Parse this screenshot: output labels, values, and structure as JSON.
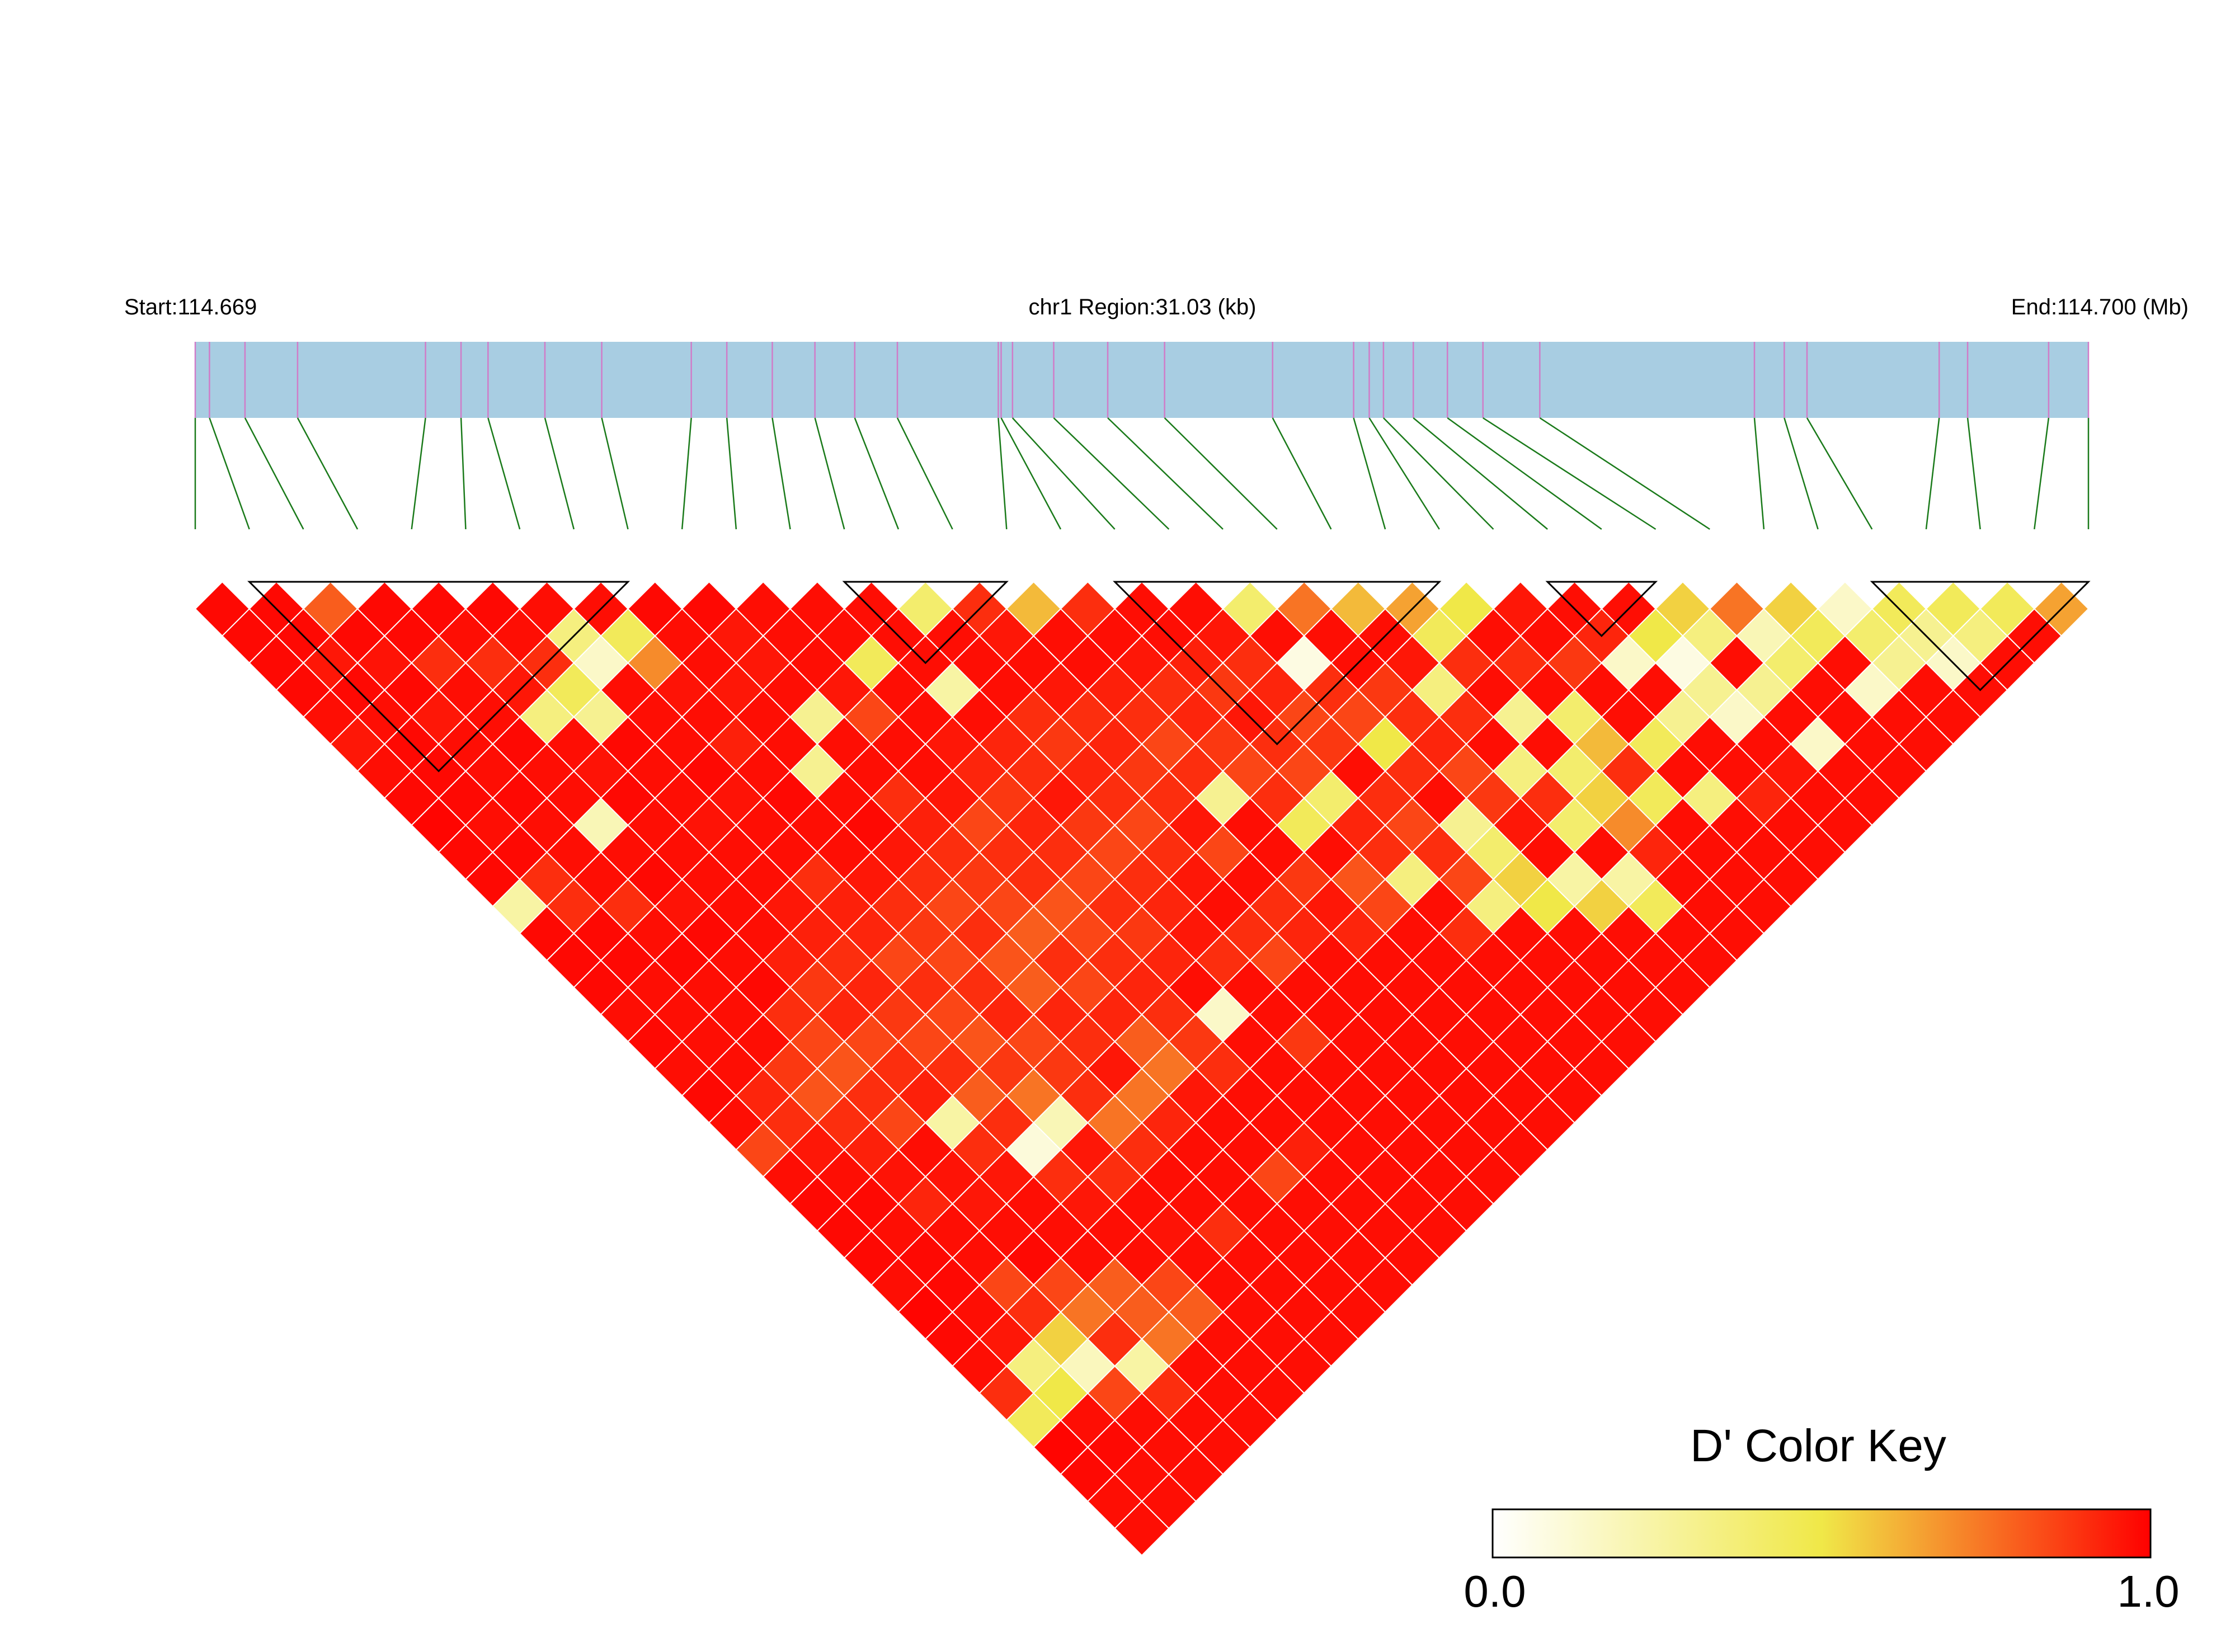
{
  "chart_data": {
    "type": "heatmap",
    "subtype": "linkage-disequilibrium-triangle",
    "header": {
      "start_label": "Start:114.669",
      "region_label": "chr1 Region:31.03 (kb)",
      "end_label": "End:114.700 (Mb)"
    },
    "region": {
      "chromosome": "chr1",
      "start_mb": 114.669,
      "end_mb": 114.7,
      "length_kb": 31.03
    },
    "metric": "D'",
    "snp_count": 36,
    "snp_positions_mb": [
      114.669,
      114.6691,
      114.66935,
      114.66972,
      114.67062,
      114.67087,
      114.67106,
      114.67146,
      114.67186,
      114.67249,
      114.67274,
      114.67306,
      114.67336,
      114.67364,
      114.67394,
      114.67465,
      114.67467,
      114.67475,
      114.67504,
      114.67542,
      114.67582,
      114.67658,
      114.67715,
      114.67726,
      114.67736,
      114.67757,
      114.67781,
      114.67806,
      114.67846,
      114.67997,
      114.68018,
      114.68034,
      114.68127,
      114.68147,
      114.68204,
      114.68232
    ],
    "ld_blocks": [
      {
        "first_snp": 2,
        "last_snp": 9
      },
      {
        "first_snp": 13,
        "last_snp": 16
      },
      {
        "first_snp": 18,
        "last_snp": 24
      },
      {
        "first_snp": 26,
        "last_snp": 28
      },
      {
        "first_snp": 32,
        "last_snp": 36
      }
    ],
    "color_key": {
      "title": "D' Color Key",
      "min_label": "0.0",
      "max_label": "1.0",
      "min": 0.0,
      "max": 1.0,
      "colors": {
        "low": "#ffffff",
        "mid": "#f0e848",
        "high": "#ff0000"
      }
    },
    "colors": {
      "gene_bar": "#a8cde2",
      "connector": "#1a7a1a",
      "exon_tick": "#d07cc8",
      "block_outline": "#000000",
      "cell_border": "#ffffff"
    },
    "ld_rows": [
      [
        0.98,
        0.98,
        0.98,
        0.98,
        0.97,
        0.95,
        0.97,
        0.98,
        0.99,
        0.98,
        0.98,
        0.25,
        0.98,
        0.98,
        0.98,
        0.97,
        0.98,
        0.97,
        0.98,
        0.97,
        0.85,
        0.97,
        0.98,
        0.98,
        0.98,
        0.97,
        0.99,
        0.98,
        0.97,
        0.9,
        0.45,
        0.99,
        0.98,
        0.97,
        0.97
      ],
      [
        0.98,
        0.98,
        0.95,
        0.98,
        0.97,
        0.98,
        0.98,
        0.98,
        0.97,
        0.98,
        0.9,
        0.9,
        0.98,
        0.98,
        0.97,
        0.97,
        0.97,
        0.97,
        0.92,
        0.9,
        0.95,
        0.97,
        0.98,
        0.97,
        0.98,
        0.98,
        0.97,
        0.95,
        0.35,
        0.5,
        0.97,
        0.98,
        0.97,
        0.97
      ],
      [
        0.8,
        0.98,
        0.96,
        0.98,
        0.95,
        0.97,
        0.97,
        0.98,
        0.97,
        0.97,
        0.97,
        0.9,
        0.97,
        0.98,
        0.97,
        0.97,
        0.97,
        0.88,
        0.82,
        0.9,
        0.93,
        0.96,
        0.92,
        0.97,
        0.97,
        0.85,
        0.9,
        0.55,
        0.18,
        0.85,
        0.97,
        0.97,
        0.97
      ],
      [
        0.98,
        0.98,
        0.9,
        0.97,
        0.97,
        0.98,
        0.97,
        0.97,
        0.2,
        0.97,
        0.98,
        0.96,
        0.98,
        0.97,
        0.98,
        0.9,
        0.85,
        0.82,
        0.9,
        0.85,
        0.97,
        0.96,
        0.95,
        0.97,
        0.98,
        0.85,
        0.75,
        0.9,
        0.25,
        0.9,
        0.97,
        0.97
      ],
      [
        0.98,
        0.97,
        0.9,
        0.95,
        0.35,
        0.97,
        0.96,
        0.98,
        0.97,
        0.97,
        0.97,
        0.97,
        0.97,
        0.93,
        0.88,
        0.92,
        0.85,
        0.9,
        0.93,
        0.25,
        0.9,
        0.95,
        0.97,
        0.97,
        0.97,
        0.8,
        0.8,
        0.75,
        0.97,
        0.97,
        0.97
      ],
      [
        0.98,
        0.97,
        0.9,
        0.45,
        0.3,
        0.98,
        0.97,
        0.97,
        0.96,
        0.97,
        0.97,
        0.95,
        0.93,
        0.9,
        0.92,
        0.88,
        0.85,
        0.9,
        0.8,
        0.9,
        0.1,
        0.9,
        0.95,
        0.97,
        0.97,
        0.85,
        0.8,
        0.97,
        0.97,
        0.97
      ],
      [
        0.97,
        0.35,
        0.15,
        0.97,
        0.97,
        0.97,
        0.98,
        0.96,
        0.97,
        0.97,
        0.9,
        0.93,
        0.92,
        0.85,
        0.9,
        0.85,
        0.82,
        0.88,
        0.75,
        0.2,
        0.95,
        0.9,
        0.97,
        0.96,
        0.97,
        0.97,
        0.97,
        0.97,
        0.97
      ],
      [
        0.97,
        0.45,
        0.7,
        0.96,
        0.97,
        0.93,
        0.97,
        0.98,
        0.97,
        0.97,
        0.95,
        0.9,
        0.88,
        0.85,
        0.9,
        0.92,
        0.85,
        0.88,
        0.9,
        0.75,
        0.9,
        0.97,
        0.97,
        0.9,
        0.97,
        0.97,
        0.97,
        0.97
      ],
      [
        0.98,
        0.97,
        0.97,
        0.95,
        0.97,
        0.97,
        0.3,
        0.97,
        0.98,
        0.95,
        0.9,
        0.85,
        0.9,
        0.82,
        0.8,
        0.92,
        0.9,
        0.95,
        0.75,
        0.92,
        0.97,
        0.97,
        0.97,
        0.97,
        0.97,
        0.97,
        0.97
      ],
      [
        0.98,
        0.95,
        0.95,
        0.97,
        0.3,
        0.97,
        0.97,
        0.9,
        0.93,
        0.9,
        0.88,
        0.85,
        0.8,
        0.9,
        0.85,
        0.92,
        0.8,
        0.75,
        0.95,
        0.97,
        0.97,
        0.85,
        0.97,
        0.97,
        0.97,
        0.97
      ],
      [
        0.97,
        0.97,
        0.97,
        0.95,
        0.85,
        0.97,
        0.97,
        0.95,
        0.85,
        0.9,
        0.9,
        0.82,
        0.85,
        0.9,
        0.92,
        0.9,
        0.88,
        0.9,
        0.97,
        0.97,
        0.93,
        0.97,
        0.97,
        0.97,
        0.97
      ],
      [
        0.97,
        0.97,
        0.45,
        0.97,
        0.97,
        0.95,
        0.92,
        0.88,
        0.92,
        0.9,
        0.85,
        0.9,
        0.88,
        0.92,
        0.97,
        0.15,
        0.97,
        0.97,
        0.97,
        0.97,
        0.97,
        0.97,
        0.97,
        0.97
      ],
      [
        0.97,
        0.97,
        0.97,
        0.25,
        0.97,
        0.92,
        0.9,
        0.95,
        0.88,
        0.85,
        0.9,
        0.92,
        0.95,
        0.9,
        0.97,
        0.97,
        0.88,
        0.97,
        0.97,
        0.97,
        0.97,
        0.97,
        0.97
      ],
      [
        0.4,
        0.97,
        0.97,
        0.97,
        0.9,
        0.88,
        0.92,
        0.9,
        0.85,
        0.9,
        0.95,
        0.97,
        0.9,
        0.85,
        0.97,
        0.97,
        0.97,
        0.97,
        0.97,
        0.97,
        0.97,
        0.97
      ],
      [
        0.9,
        0.95,
        0.97,
        0.95,
        0.9,
        0.92,
        0.88,
        0.9,
        0.95,
        0.85,
        0.97,
        0.9,
        0.92,
        0.97,
        0.97,
        0.97,
        0.97,
        0.97,
        0.97,
        0.97,
        0.97
      ],
      [
        0.6,
        0.97,
        0.97,
        0.93,
        0.9,
        0.85,
        0.9,
        0.3,
        0.97,
        0.97,
        0.88,
        0.95,
        0.92,
        0.97,
        0.97,
        0.97,
        0.97,
        0.97,
        0.97,
        0.97
      ],
      [
        0.9,
        0.97,
        0.95,
        0.9,
        0.92,
        0.88,
        0.85,
        0.9,
        0.45,
        0.97,
        0.82,
        0.85,
        0.97,
        0.97,
        0.97,
        0.97,
        0.97,
        0.97,
        0.97
      ],
      [
        0.97,
        0.97,
        0.93,
        0.88,
        0.95,
        0.9,
        0.85,
        0.4,
        0.92,
        0.9,
        0.35,
        0.97,
        0.9,
        0.97,
        0.97,
        0.97,
        0.97,
        0.97
      ],
      [
        0.97,
        0.95,
        0.9,
        0.92,
        0.85,
        0.88,
        0.97,
        0.9,
        0.85,
        0.9,
        0.85,
        0.35,
        0.97,
        0.97,
        0.97,
        0.97,
        0.97
      ],
      [
        0.4,
        0.97,
        0.08,
        0.9,
        0.85,
        0.5,
        0.9,
        0.97,
        0.3,
        0.4,
        0.55,
        0.5,
        0.97,
        0.97,
        0.97,
        0.97
      ],
      [
        0.75,
        0.97,
        0.97,
        0.88,
        0.9,
        0.92,
        0.85,
        0.88,
        0.95,
        0.97,
        0.25,
        0.55,
        0.97,
        0.97,
        0.97
      ],
      [
        0.6,
        0.97,
        0.95,
        0.35,
        0.9,
        0.97,
        0.35,
        0.9,
        0.4,
        0.97,
        0.25,
        0.45,
        0.97,
        0.97
      ],
      [
        0.65,
        0.45,
        0.9,
        0.97,
        0.3,
        0.97,
        0.4,
        0.55,
        0.7,
        0.92,
        0.97,
        0.97,
        0.97
      ],
      [
        0.5,
        0.97,
        0.9,
        0.97,
        0.4,
        0.6,
        0.9,
        0.45,
        0.97,
        0.97,
        0.97,
        0.97
      ],
      [
        0.95,
        0.97,
        0.88,
        0.97,
        0.97,
        0.45,
        0.97,
        0.35,
        0.97,
        0.97,
        0.97
      ],
      [
        0.97,
        0.92,
        0.15,
        0.97,
        0.3,
        0.97,
        0.97,
        0.92,
        0.97,
        0.97
      ],
      [
        0.97,
        0.5,
        0.08,
        0.3,
        0.15,
        0.97,
        0.95,
        0.97,
        0.97
      ],
      [
        0.55,
        0.35,
        0.97,
        0.3,
        0.97,
        0.15,
        0.97,
        0.97
      ],
      [
        0.75,
        0.2,
        0.4,
        0.97,
        0.97,
        0.97,
        0.97
      ],
      [
        0.55,
        0.45,
        0.97,
        0.15,
        0.97,
        0.97
      ],
      [
        0.15,
        0.4,
        0.3,
        0.97,
        0.97
      ],
      [
        0.45,
        0.3,
        0.15,
        0.97
      ],
      [
        0.45,
        0.35,
        0.97
      ],
      [
        0.45,
        0.97
      ],
      [
        0.65
      ]
    ]
  }
}
